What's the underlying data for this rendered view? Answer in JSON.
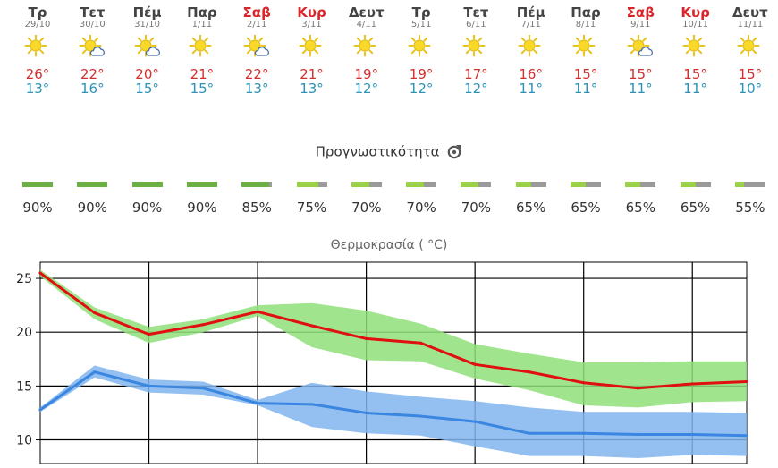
{
  "days": [
    {
      "name": "Τρ",
      "date": "29/10",
      "weekend": false,
      "icon": "sun-icon",
      "max": "26°",
      "min": "13°"
    },
    {
      "name": "Τετ",
      "date": "30/10",
      "weekend": false,
      "icon": "sun-cloud-icon",
      "max": "22°",
      "min": "16°"
    },
    {
      "name": "Πέμ",
      "date": "31/10",
      "weekend": false,
      "icon": "sun-cloud-icon",
      "max": "20°",
      "min": "15°"
    },
    {
      "name": "Παρ",
      "date": "1/11",
      "weekend": false,
      "icon": "sun-icon",
      "max": "21°",
      "min": "15°"
    },
    {
      "name": "Σαβ",
      "date": "2/11",
      "weekend": true,
      "icon": "sun-cloud-icon",
      "max": "22°",
      "min": "13°"
    },
    {
      "name": "Κυρ",
      "date": "3/11",
      "weekend": true,
      "icon": "sun-icon",
      "max": "21°",
      "min": "13°"
    },
    {
      "name": "Δευτ",
      "date": "4/11",
      "weekend": false,
      "icon": "sun-icon",
      "max": "19°",
      "min": "12°"
    },
    {
      "name": "Τρ",
      "date": "5/11",
      "weekend": false,
      "icon": "sun-icon",
      "max": "19°",
      "min": "12°"
    },
    {
      "name": "Τετ",
      "date": "6/11",
      "weekend": false,
      "icon": "sun-icon",
      "max": "17°",
      "min": "12°"
    },
    {
      "name": "Πέμ",
      "date": "7/11",
      "weekend": false,
      "icon": "sun-icon",
      "max": "16°",
      "min": "11°"
    },
    {
      "name": "Παρ",
      "date": "8/11",
      "weekend": false,
      "icon": "sun-icon",
      "max": "15°",
      "min": "11°"
    },
    {
      "name": "Σαβ",
      "date": "9/11",
      "weekend": true,
      "icon": "sun-cloud-icon",
      "max": "15°",
      "min": "11°"
    },
    {
      "name": "Κυρ",
      "date": "10/11",
      "weekend": true,
      "icon": "sun-icon",
      "max": "15°",
      "min": "11°"
    },
    {
      "name": "Δευτ",
      "date": "11/11",
      "weekend": false,
      "icon": "sun-icon",
      "max": "15°",
      "min": "10°"
    }
  ],
  "forecastability": {
    "title": "Προγνωστικότητα",
    "icon": "refresh-target-icon",
    "values": [
      "90%",
      "90%",
      "90%",
      "90%",
      "85%",
      "75%",
      "70%",
      "70%",
      "70%",
      "65%",
      "65%",
      "65%",
      "65%",
      "55%"
    ],
    "levels": [
      0.9,
      0.9,
      0.9,
      0.9,
      0.85,
      0.75,
      0.7,
      0.7,
      0.7,
      0.65,
      0.65,
      0.65,
      0.65,
      0.55
    ]
  },
  "colors": {
    "max_line": "#e01010",
    "max_band": "#8fe07a",
    "min_line": "#3a86e0",
    "min_band": "#80b4ee",
    "bar_dark_green": "#6ab042",
    "bar_light_green": "#9ad147",
    "bar_grey": "#9a9a9a",
    "weekend": "#d9262b",
    "max_temp": "#d32f2f",
    "min_temp": "#2b93b8"
  },
  "chart_data": {
    "type": "line",
    "title": "Θερμοκρασία ( °C)",
    "xlabel": "",
    "ylabel": "",
    "yticks": [
      "25",
      "20",
      "15",
      "10"
    ],
    "ylim": [
      7.8,
      26.5
    ],
    "grid": true,
    "x": [
      "29/10",
      "30/10",
      "31/10",
      "1/11",
      "2/11",
      "3/11",
      "4/11",
      "5/11",
      "6/11",
      "7/11",
      "8/11",
      "9/11",
      "10/11",
      "11/11"
    ],
    "series": [
      {
        "values": [
          25.5,
          21.8,
          19.8,
          20.7,
          21.9,
          20.6,
          19.4,
          19.0,
          17.0,
          16.3,
          15.3,
          14.8,
          15.2,
          15.4
        ],
        "band_low": [
          25.2,
          21.2,
          19.0,
          20.0,
          21.5,
          18.6,
          17.4,
          17.3,
          15.7,
          14.6,
          13.2,
          13.0,
          13.5,
          13.6
        ],
        "band_high": [
          25.8,
          22.3,
          20.5,
          21.2,
          22.5,
          22.7,
          22.0,
          20.8,
          18.9,
          18.0,
          17.2,
          17.2,
          17.3,
          17.3
        ]
      },
      {
        "values": [
          12.8,
          16.3,
          15.0,
          14.8,
          13.4,
          13.3,
          12.5,
          12.2,
          11.7,
          10.6,
          10.6,
          10.5,
          10.5,
          10.4
        ],
        "band_low": [
          12.6,
          15.8,
          14.4,
          14.2,
          13.2,
          11.2,
          10.6,
          10.4,
          9.4,
          8.5,
          8.5,
          8.3,
          8.6,
          8.5
        ],
        "band_high": [
          13.0,
          16.9,
          15.6,
          15.4,
          13.7,
          15.3,
          14.5,
          14.0,
          13.6,
          13.0,
          12.6,
          12.6,
          12.6,
          12.5
        ]
      }
    ]
  }
}
